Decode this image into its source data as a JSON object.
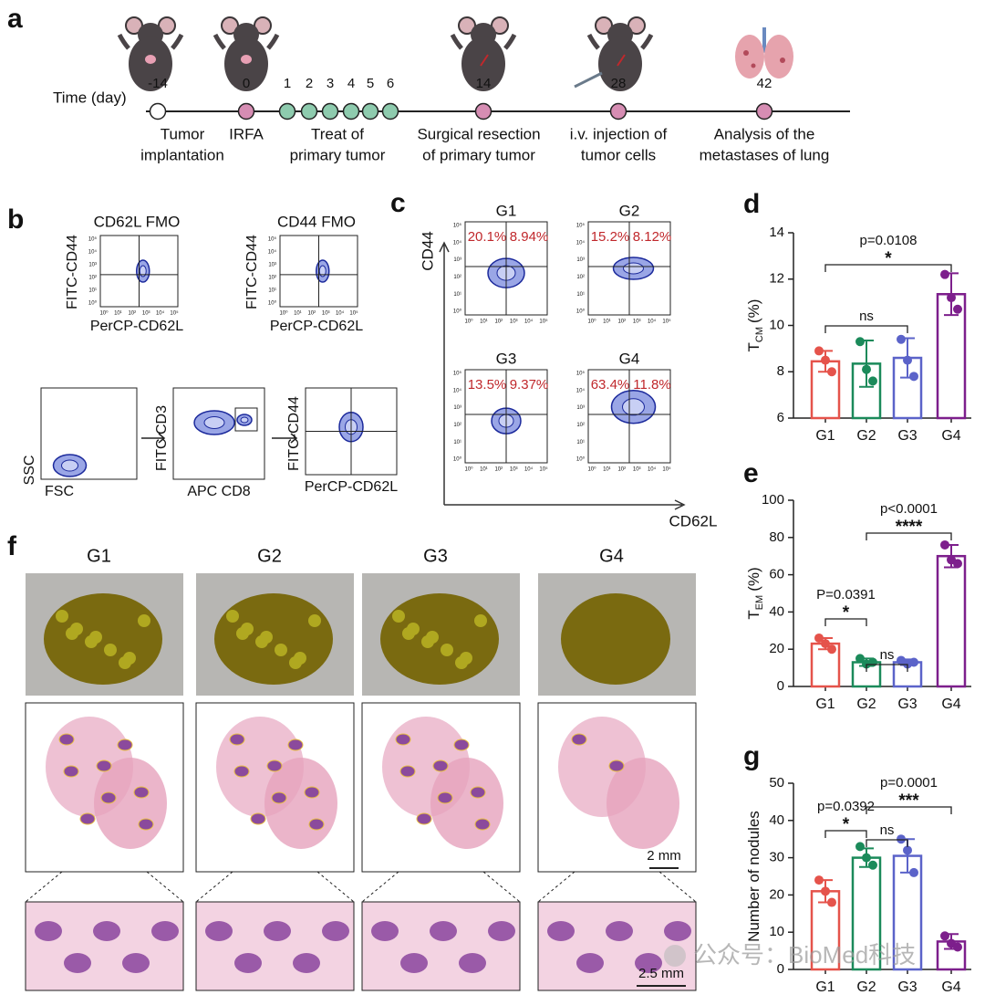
{
  "panels": {
    "a": {
      "label": "a",
      "time_label": "Time (day)",
      "days": [
        -14,
        0,
        1,
        2,
        3,
        4,
        5,
        6,
        14,
        28,
        42
      ],
      "events": [
        [
          "Tumor",
          "implantation"
        ],
        [
          "IRFA"
        ],
        [
          "Treat of",
          "primary tumor"
        ],
        [
          "Surgical resection",
          "of primary tumor"
        ],
        [
          "i.v. injection of",
          "tumor cells"
        ],
        [
          "Analysis of the",
          "metastases of lung"
        ]
      ]
    },
    "b": {
      "label": "b",
      "fmo": [
        {
          "title": "CD62L FMO",
          "ylabel": "FITC-CD44",
          "xlabel": "PerCP-CD62L"
        },
        {
          "title": "CD44 FMO",
          "ylabel": "FITC-CD44",
          "xlabel": "PerCP-CD62L"
        }
      ],
      "gating": [
        {
          "ylabel": "SSC",
          "xlabel": "FSC"
        },
        {
          "ylabel": "FITC CD3",
          "xlabel": "APC CD8"
        },
        {
          "ylabel": "FITC-CD44",
          "xlabel": "PerCP-CD62L"
        }
      ]
    },
    "c": {
      "label": "c",
      "ylabel": "CD44",
      "xlabel": "CD62L",
      "plots": [
        {
          "title": "G1",
          "upper_left": "20.1%",
          "upper_right": "8.94%"
        },
        {
          "title": "G2",
          "upper_left": "15.2%",
          "upper_right": "8.12%"
        },
        {
          "title": "G3",
          "upper_left": "13.5%",
          "upper_right": "9.37%"
        },
        {
          "title": "G4",
          "upper_left": "63.4%",
          "upper_right": "11.8%"
        }
      ]
    },
    "flow_ticks": [
      "10⁰",
      "10¹",
      "10²",
      "10³",
      "10⁴",
      "10⁵"
    ],
    "f": {
      "label": "f",
      "groups": [
        "G1",
        "G2",
        "G3",
        "G4"
      ],
      "scale_bars": [
        "2 mm",
        "2.5 mm"
      ]
    },
    "watermark": "公众号：BioMed科技"
  },
  "chart_data": [
    {
      "type": "bar",
      "label": "d",
      "ylabel": {
        "text": "T",
        "subscript": "CM",
        "unit": "(%)"
      },
      "categories": [
        "G1",
        "G2",
        "G3",
        "G4"
      ],
      "colors": [
        "#e5534b",
        "#1b8a5a",
        "#5b63c9",
        "#7d1f8c"
      ],
      "values": [
        8.45,
        8.35,
        8.6,
        11.35
      ],
      "errors": [
        0.45,
        1.0,
        0.85,
        0.9
      ],
      "points": [
        [
          8.9,
          8.5,
          8.0
        ],
        [
          9.3,
          8.1,
          7.6
        ],
        [
          9.4,
          8.5,
          7.8
        ],
        [
          12.2,
          11.2,
          10.7
        ]
      ],
      "ylim": [
        6,
        14
      ],
      "yticks": [
        6,
        8,
        10,
        12,
        14
      ],
      "annotations": [
        {
          "p": "p=0.0108",
          "mark": "*",
          "between": [
            0,
            3
          ]
        },
        {
          "mark": "ns",
          "between": [
            0,
            2
          ]
        }
      ]
    },
    {
      "type": "bar",
      "label": "e",
      "ylabel": {
        "text": "T",
        "subscript": "EM",
        "unit": "(%)"
      },
      "categories": [
        "G1",
        "G2",
        "G3",
        "G4"
      ],
      "colors": [
        "#e5534b",
        "#1b8a5a",
        "#5b63c9",
        "#7d1f8c"
      ],
      "values": [
        23,
        13,
        13,
        70
      ],
      "errors": [
        3,
        2,
        1.5,
        6
      ],
      "points": [
        [
          26,
          23,
          20
        ],
        [
          15,
          12,
          13
        ],
        [
          14,
          12,
          13
        ],
        [
          76,
          68,
          66
        ]
      ],
      "ylim": [
        0,
        100
      ],
      "yticks": [
        0,
        20,
        40,
        60,
        80,
        100
      ],
      "annotations": [
        {
          "p": "P=0.0391",
          "mark": "*",
          "between": [
            0,
            1
          ]
        },
        {
          "mark": "ns",
          "between": [
            1,
            2
          ]
        },
        {
          "p": "p<0.0001",
          "mark": "****",
          "between": [
            1,
            3
          ]
        }
      ]
    },
    {
      "type": "bar",
      "label": "g",
      "ylabel": {
        "text": "Number of nodules"
      },
      "categories": [
        "G1",
        "G2",
        "G3",
        "G4"
      ],
      "colors": [
        "#e5534b",
        "#1b8a5a",
        "#5b63c9",
        "#7d1f8c"
      ],
      "values": [
        21,
        30,
        30.5,
        7.5
      ],
      "errors": [
        3,
        2.5,
        4.5,
        2
      ],
      "points": [
        [
          24,
          21,
          18
        ],
        [
          33,
          30,
          28
        ],
        [
          35,
          32,
          26
        ],
        [
          9,
          7,
          6
        ]
      ],
      "ylim": [
        0,
        50
      ],
      "yticks": [
        0,
        10,
        20,
        30,
        40,
        50
      ],
      "annotations": [
        {
          "p": "p=0.0392",
          "mark": "*",
          "between": [
            0,
            1
          ]
        },
        {
          "mark": "ns",
          "between": [
            1,
            2
          ]
        },
        {
          "p": "p=0.0001",
          "mark": "***",
          "between": [
            1,
            3
          ]
        }
      ]
    }
  ]
}
